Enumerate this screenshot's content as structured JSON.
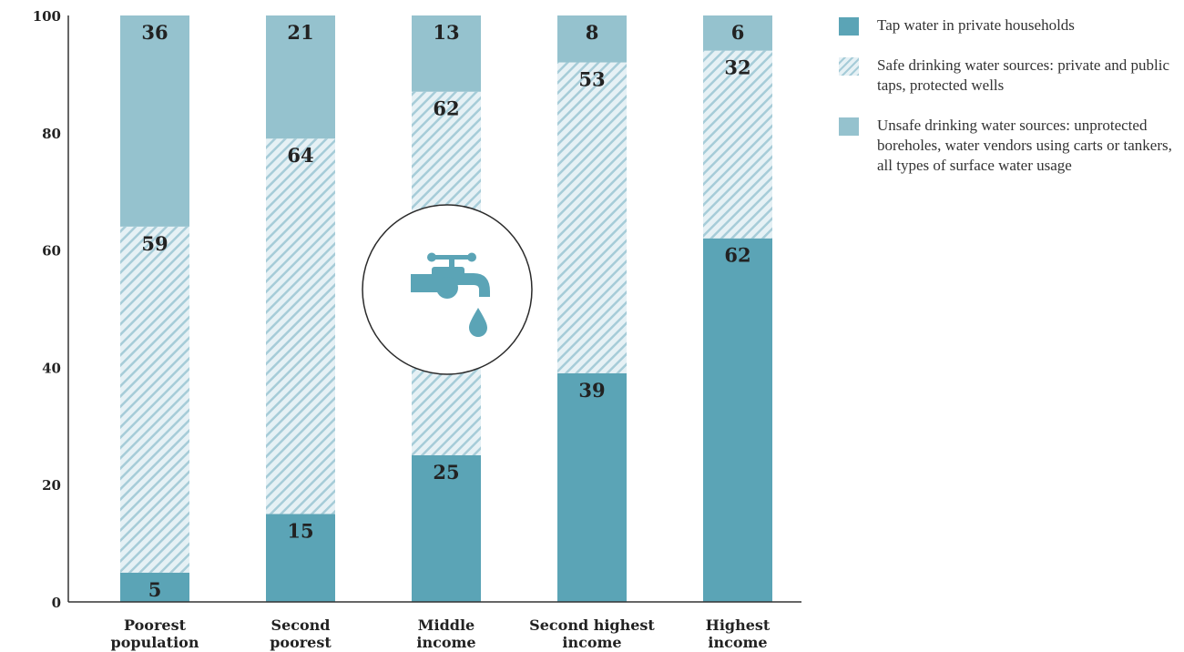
{
  "chart_data": {
    "type": "bar",
    "stacked": true,
    "categories": [
      [
        "Poorest",
        "population"
      ],
      [
        "Second",
        "poorest"
      ],
      [
        "Middle",
        "income"
      ],
      [
        "Second highest",
        "income"
      ],
      [
        "Highest",
        "income"
      ]
    ],
    "series": [
      {
        "name": "Tap water in private households",
        "values": [
          5,
          15,
          25,
          39,
          62
        ],
        "color": "#5ba4b6",
        "pattern": "solid"
      },
      {
        "name": "Safe drinking water sources: private and public taps, protected wells",
        "values": [
          59,
          64,
          62,
          53,
          32
        ],
        "color": "#a6ccd8",
        "pattern": "hatch"
      },
      {
        "name": "Unsafe drinking water sources: unprotected boreholes, water vendors using carts or tankers, all types of surface water usage",
        "values": [
          36,
          21,
          13,
          8,
          6
        ],
        "color": "#95c2ce",
        "pattern": "solid"
      }
    ],
    "yticks": [
      0,
      20,
      40,
      60,
      80,
      100
    ],
    "ylim": [
      0,
      100
    ],
    "grid": false,
    "legend_position": "right",
    "icon": "water-tap-icon"
  }
}
